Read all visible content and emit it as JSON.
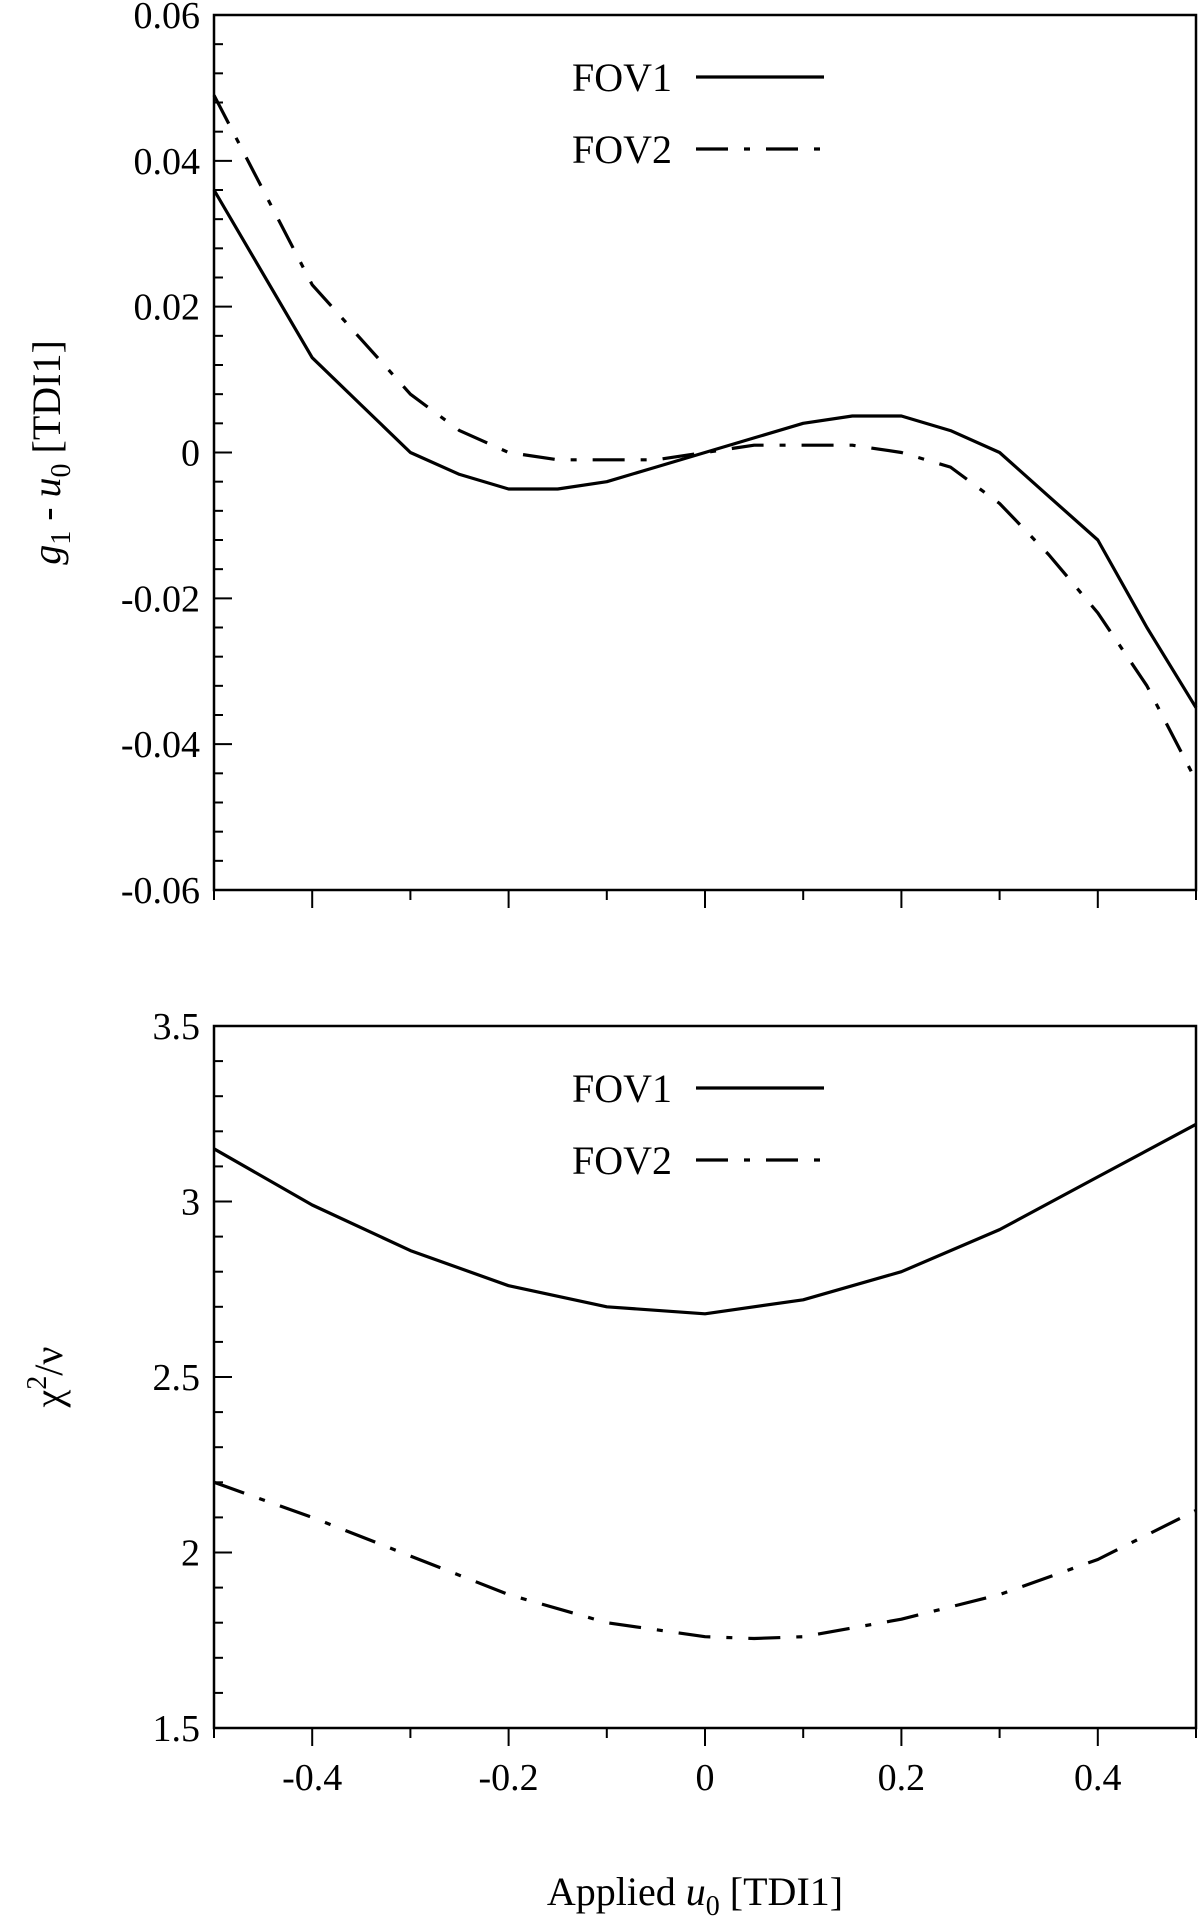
{
  "chart_data": [
    {
      "type": "line",
      "ylabel_parts": [
        "g",
        "1",
        " - ",
        "u",
        "0",
        " [TDI1]"
      ],
      "xlim": [
        -0.5,
        0.5
      ],
      "ylim": [
        -0.06,
        0.06
      ],
      "xticks": [
        -0.4,
        -0.2,
        0,
        0.2,
        0.4
      ],
      "xtick_labels": [
        "",
        "",
        "",
        "",
        ""
      ],
      "yticks": [
        -0.06,
        -0.04,
        -0.02,
        0,
        0.02,
        0.04,
        0.06
      ],
      "ytick_labels": [
        "-0.06",
        "-0.04",
        "-0.02",
        "0",
        "0.02",
        "0.04",
        "0.06"
      ],
      "legend_position": "top-center",
      "series": [
        {
          "name": "FOV1",
          "style": "solid",
          "x": [
            -0.5,
            -0.4,
            -0.35,
            -0.3,
            -0.25,
            -0.2,
            -0.15,
            -0.1,
            -0.05,
            0,
            0.05,
            0.1,
            0.15,
            0.2,
            0.25,
            0.3,
            0.35,
            0.4,
            0.45,
            0.5
          ],
          "y": [
            0.036,
            0.013,
            0.0065,
            0,
            -0.003,
            -0.005,
            -0.005,
            -0.004,
            -0.002,
            0,
            0.002,
            0.004,
            0.005,
            0.005,
            0.003,
            0,
            -0.006,
            -0.012,
            -0.024,
            -0.035
          ]
        },
        {
          "name": "FOV2",
          "style": "dash-dot",
          "x": [
            -0.5,
            -0.4,
            -0.3,
            -0.25,
            -0.2,
            -0.15,
            -0.1,
            -0.05,
            0,
            0.05,
            0.1,
            0.15,
            0.2,
            0.25,
            0.3,
            0.35,
            0.4,
            0.45,
            0.5
          ],
          "y": [
            0.049,
            0.023,
            0.008,
            0.003,
            0,
            -0.001,
            -0.001,
            -0.001,
            0,
            0.001,
            0.001,
            0.001,
            0,
            -0.002,
            -0.007,
            -0.014,
            -0.022,
            -0.032,
            -0.045
          ]
        }
      ]
    },
    {
      "type": "line",
      "ylabel_parts": [
        "χ",
        "2",
        "/ν"
      ],
      "xlabel_parts": [
        "Applied ",
        "u",
        "0",
        " [TDI1]"
      ],
      "xlim": [
        -0.5,
        0.5
      ],
      "ylim": [
        1.5,
        3.5
      ],
      "xticks": [
        -0.4,
        -0.2,
        0,
        0.2,
        0.4
      ],
      "xtick_labels": [
        "-0.4",
        "-0.2",
        "0",
        "0.2",
        "0.4"
      ],
      "yticks": [
        1.5,
        2,
        2.5,
        3,
        3.5
      ],
      "ytick_labels": [
        "1.5",
        "2",
        "2.5",
        "3",
        "3.5"
      ],
      "legend_position": "top-center",
      "series": [
        {
          "name": "FOV1",
          "style": "solid",
          "x": [
            -0.5,
            -0.4,
            -0.3,
            -0.2,
            -0.1,
            0,
            0.1,
            0.2,
            0.3,
            0.4,
            0.5
          ],
          "y": [
            3.15,
            2.99,
            2.86,
            2.76,
            2.7,
            2.68,
            2.72,
            2.8,
            2.92,
            3.07,
            3.22
          ]
        },
        {
          "name": "FOV2",
          "style": "dash-dot",
          "x": [
            -0.5,
            -0.4,
            -0.3,
            -0.2,
            -0.1,
            0,
            0.05,
            0.1,
            0.2,
            0.3,
            0.4,
            0.5
          ],
          "y": [
            2.2,
            2.1,
            1.99,
            1.88,
            1.8,
            1.76,
            1.755,
            1.76,
            1.81,
            1.88,
            1.98,
            2.12
          ]
        }
      ]
    }
  ]
}
